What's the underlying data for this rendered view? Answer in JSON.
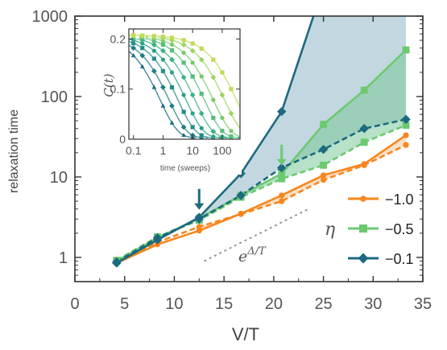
{
  "chart_data": [
    {
      "type": "line",
      "title": "",
      "xlabel": "V/T",
      "ylabel": "relaxation time",
      "xlim": [
        0,
        35
      ],
      "ylim": [
        0.5,
        1000
      ],
      "y_scale": "log",
      "x_ticks": [
        0,
        5,
        10,
        15,
        20,
        25,
        30,
        35
      ],
      "x_tick_labels": [
        "0",
        "5",
        "10",
        "15",
        "20",
        "25",
        "30",
        "35"
      ],
      "y_ticks": [
        1,
        10,
        100,
        1000
      ],
      "y_tick_labels": [
        "1",
        "10",
        "100",
        "1000"
      ],
      "grid": false,
      "legend_position": "bottom-right",
      "legend_title": "η",
      "annotation": "e^{Δ/T}",
      "series": [
        {
          "name": "−1.0",
          "color": "#f7861d",
          "marker": "circle",
          "solid": {
            "x": [
              4.2,
              8.3,
              12.5,
              16.7,
              20.8,
              25.0,
              29.1,
              33.3
            ],
            "y": [
              0.85,
              1.45,
              2.15,
              3.5,
              5.9,
              10.5,
              14.5,
              33.0
            ]
          },
          "dashed": {
            "x": [
              4.2,
              8.3,
              12.5,
              16.7,
              20.8,
              25.0,
              29.1,
              33.3
            ],
            "y": [
              0.88,
              1.55,
              2.4,
              3.45,
              5.0,
              9.2,
              14.0,
              25.0
            ]
          }
        },
        {
          "name": "−0.5",
          "color": "#6cc96f",
          "marker": "square",
          "solid": {
            "x": [
              4.2,
              8.3,
              12.5,
              16.7,
              20.8,
              25.0,
              29.1,
              33.3
            ],
            "y": [
              0.9,
              1.75,
              3.05,
              5.9,
              11.0,
              45.0,
              120.0,
              380.0
            ]
          },
          "dashed": {
            "x": [
              4.2,
              8.3,
              12.5,
              16.7,
              20.8,
              25.0,
              29.1,
              33.3
            ],
            "y": [
              0.92,
              1.8,
              2.9,
              5.6,
              9.5,
              14.0,
              27.0,
              44.0
            ]
          }
        },
        {
          "name": "−0.1",
          "color": "#1d6a80",
          "marker": "diamond",
          "solid": {
            "x": [
              4.2,
              8.3,
              12.5,
              16.7,
              20.8,
              24.0
            ],
            "y": [
              0.85,
              1.65,
              3.15,
              11.0,
              65.0,
              1000.0
            ]
          },
          "dashed": {
            "x": [
              4.2,
              8.3,
              12.5,
              16.7,
              20.8,
              25.0,
              29.1,
              33.3
            ],
            "y": [
              0.88,
              1.75,
              3.0,
              5.9,
              13.0,
              22.0,
              40.0,
              52.0
            ]
          }
        }
      ],
      "markers_at": {
        "x": [
          4.2,
          8.3,
          12.5,
          16.7,
          20.8,
          25.0,
          29.1,
          33.3
        ],
        "-1.0": {
          "solid": [
            0.85,
            1.45,
            2.15,
            3.5,
            5.9,
            10.5,
            14.5,
            33.0
          ],
          "dashed": [
            0.88,
            1.55,
            2.4,
            3.45,
            5.0,
            9.2,
            14.0,
            25.0
          ]
        },
        "-0.5": {
          "solid": [
            0.9,
            1.75,
            3.05,
            5.9,
            11.0,
            45.0,
            120.0,
            380.0
          ],
          "dashed": [
            0.92,
            1.8,
            2.9,
            5.6,
            9.5,
            14.0,
            27.0,
            44.0
          ]
        },
        "-0.1": {
          "solid": [
            0.85,
            1.65,
            3.15,
            11.0,
            65.0
          ],
          "dashed": [
            0.88,
            1.75,
            3.0,
            5.9,
            13.0,
            22.0,
            40.0,
            52.0
          ]
        }
      },
      "arrows": [
        {
          "x": 12.5,
          "color": "#1d6a80",
          "target": "−0.1 transition"
        },
        {
          "x": 20.8,
          "color": "#6cc96f",
          "target": "−0.5 transition"
        }
      ],
      "guide_line": {
        "label": "e^{Δ/T}",
        "x": [
          13.0,
          23.5
        ],
        "y": [
          0.9,
          4.0
        ],
        "style": "dotted",
        "color": "#999999"
      },
      "shaded_regions": [
        {
          "between": "−0.1",
          "color": "#8fb7c7"
        },
        {
          "between": "−0.5",
          "color": "#7cc99b"
        },
        {
          "between": "−1.0",
          "color": "#f6c79a"
        }
      ]
    },
    {
      "type": "scatter",
      "title": "",
      "xlabel": "time (sweeps)",
      "ylabel": "C(t)",
      "x_scale": "log",
      "xlim": [
        0.07,
        400
      ],
      "ylim": [
        0,
        0.22
      ],
      "x_ticks": [
        0.1,
        1,
        10,
        100
      ],
      "x_tick_labels": [
        "0.1",
        "1",
        "10",
        "100"
      ],
      "y_ticks": [
        0,
        0.1,
        0.2
      ],
      "y_tick_labels": [
        "0",
        "0.1",
        "0.2"
      ],
      "grid": false,
      "t": [
        0.1,
        0.2,
        0.5,
        1,
        2,
        5,
        10,
        20,
        50,
        100,
        200
      ],
      "curves": [
        {
          "tau": 0.8,
          "color": "#1d6a80",
          "marker": "triangle"
        },
        {
          "tau": 1.6,
          "color": "#1f7d85",
          "marker": "diamond"
        },
        {
          "tau": 3.2,
          "color": "#228f88",
          "marker": "square"
        },
        {
          "tau": 6.0,
          "color": "#2aa188",
          "marker": "circle"
        },
        {
          "tau": 12,
          "color": "#3bb182",
          "marker": "diamond"
        },
        {
          "tau": 25,
          "color": "#55bf78",
          "marker": "square"
        },
        {
          "tau": 50,
          "color": "#76ca6c",
          "marker": "circle"
        },
        {
          "tau": 120,
          "color": "#9ad45f",
          "marker": "diamond"
        },
        {
          "tau": 300,
          "color": "#bfdc56",
          "marker": "square"
        }
      ]
    }
  ]
}
